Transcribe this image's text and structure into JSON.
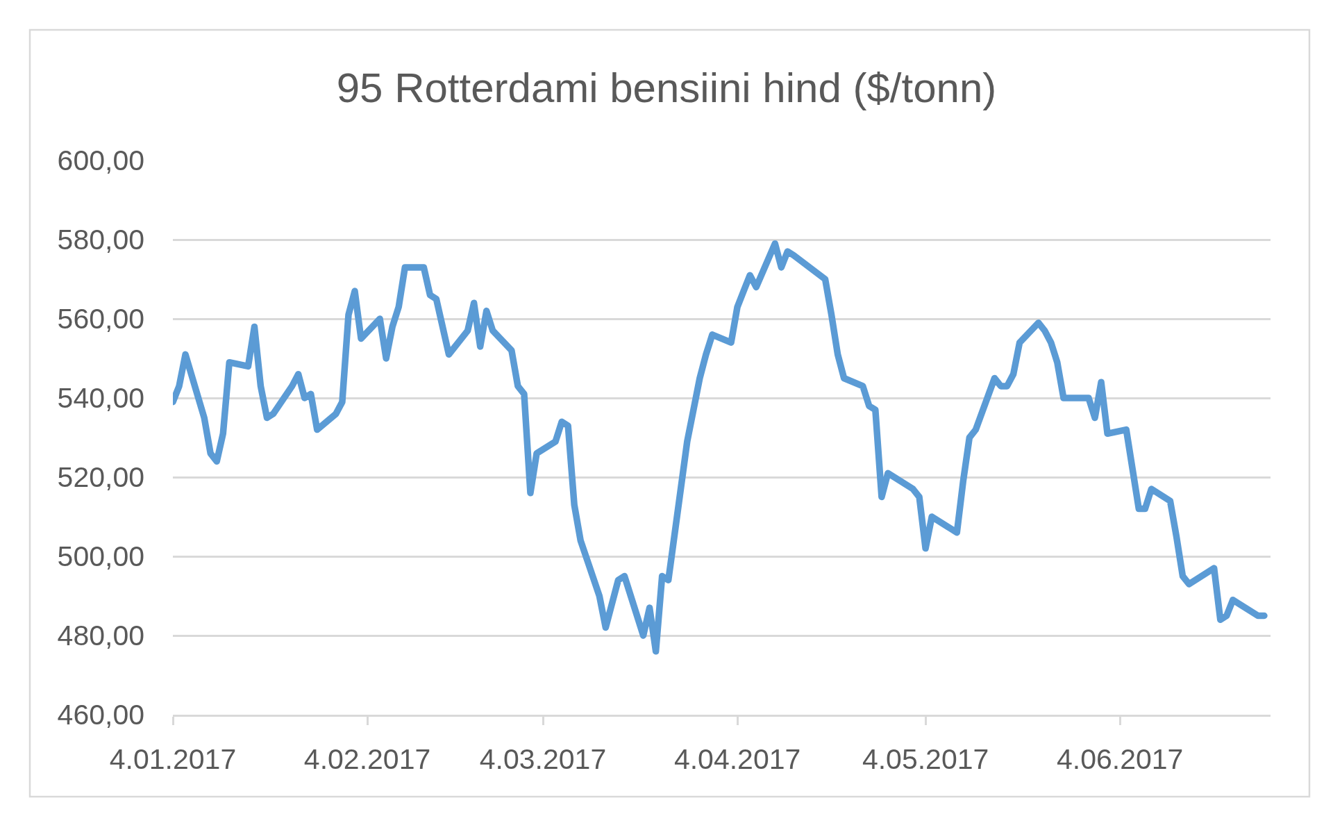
{
  "chart_data": {
    "type": "line",
    "title": "95 Rotterdami bensiini hind ($/tonn)",
    "x": [
      "2017-01-04",
      "2017-01-05",
      "2017-01-06",
      "2017-01-09",
      "2017-01-10",
      "2017-01-11",
      "2017-01-12",
      "2017-01-13",
      "2017-01-16",
      "2017-01-17",
      "2017-01-18",
      "2017-01-19",
      "2017-01-20",
      "2017-01-23",
      "2017-01-24",
      "2017-01-25",
      "2017-01-26",
      "2017-01-27",
      "2017-01-30",
      "2017-01-31",
      "2017-02-01",
      "2017-02-02",
      "2017-02-03",
      "2017-02-06",
      "2017-02-07",
      "2017-02-08",
      "2017-02-09",
      "2017-02-10",
      "2017-02-13",
      "2017-02-14",
      "2017-02-15",
      "2017-02-16",
      "2017-02-17",
      "2017-02-20",
      "2017-02-21",
      "2017-02-22",
      "2017-02-23",
      "2017-02-24",
      "2017-02-27",
      "2017-02-28",
      "2017-03-01",
      "2017-03-02",
      "2017-03-03",
      "2017-03-06",
      "2017-03-07",
      "2017-03-08",
      "2017-03-09",
      "2017-03-10",
      "2017-03-13",
      "2017-03-14",
      "2017-03-15",
      "2017-03-16",
      "2017-03-17",
      "2017-03-20",
      "2017-03-21",
      "2017-03-22",
      "2017-03-23",
      "2017-03-24",
      "2017-03-27",
      "2017-03-28",
      "2017-03-29",
      "2017-03-30",
      "2017-03-31",
      "2017-04-03",
      "2017-04-04",
      "2017-04-05",
      "2017-04-06",
      "2017-04-07",
      "2017-04-10",
      "2017-04-11",
      "2017-04-12",
      "2017-04-13",
      "2017-04-18",
      "2017-04-19",
      "2017-04-20",
      "2017-04-21",
      "2017-04-24",
      "2017-04-25",
      "2017-04-26",
      "2017-04-27",
      "2017-04-28",
      "2017-05-02",
      "2017-05-03",
      "2017-05-04",
      "2017-05-05",
      "2017-05-08",
      "2017-05-09",
      "2017-05-10",
      "2017-05-11",
      "2017-05-12",
      "2017-05-15",
      "2017-05-16",
      "2017-05-17",
      "2017-05-18",
      "2017-05-19",
      "2017-05-22",
      "2017-05-23",
      "2017-05-24",
      "2017-05-25",
      "2017-05-26",
      "2017-05-29",
      "2017-05-30",
      "2017-05-31",
      "2017-06-01",
      "2017-06-02",
      "2017-06-05",
      "2017-06-06",
      "2017-06-07",
      "2017-06-08",
      "2017-06-09",
      "2017-06-12",
      "2017-06-13",
      "2017-06-14",
      "2017-06-15",
      "2017-06-16",
      "2017-06-19",
      "2017-06-20",
      "2017-06-21",
      "2017-06-22",
      "2017-06-23",
      "2017-06-26",
      "2017-06-27"
    ],
    "series": [
      {
        "color": "#5b9bd5",
        "values": [
          539,
          543,
          551,
          535,
          526,
          524,
          531,
          549,
          548,
          558,
          543,
          535,
          536,
          543,
          546,
          540,
          541,
          532,
          536,
          539,
          561,
          567,
          555,
          560,
          550,
          558,
          563,
          573,
          573,
          566,
          565,
          558,
          551,
          557,
          564,
          553,
          562,
          557,
          552,
          543,
          541,
          516,
          526,
          529,
          534,
          533,
          513,
          504,
          490,
          482,
          488,
          494,
          495,
          480,
          487,
          476,
          495,
          494,
          529,
          537,
          545,
          551,
          556,
          554,
          563,
          567,
          571,
          568,
          579,
          573,
          577,
          576,
          570,
          561,
          551,
          545,
          543,
          538,
          537,
          515,
          521,
          517,
          515,
          502,
          510,
          507,
          506,
          519,
          530,
          532,
          545,
          543,
          543,
          546,
          554,
          559,
          557,
          554,
          549,
          540,
          540,
          540,
          535,
          544,
          531,
          532,
          522,
          512,
          512,
          517,
          514,
          505,
          495,
          493,
          494,
          497,
          484,
          485,
          489,
          488,
          485,
          485
        ]
      }
    ],
    "xlim": [
      "2017-01-04",
      "2017-06-28"
    ],
    "xticks": [
      {
        "value": "2017-01-04",
        "label": "4.01.2017"
      },
      {
        "value": "2017-02-04",
        "label": "4.02.2017"
      },
      {
        "value": "2017-03-04",
        "label": "4.03.2017"
      },
      {
        "value": "2017-04-04",
        "label": "4.04.2017"
      },
      {
        "value": "2017-05-04",
        "label": "4.05.2017"
      },
      {
        "value": "2017-06-04",
        "label": "4.06.2017"
      }
    ],
    "ylim": [
      460,
      600
    ],
    "yticks": [
      {
        "value": 460,
        "label": "460,00"
      },
      {
        "value": 480,
        "label": "480,00"
      },
      {
        "value": 500,
        "label": "500,00"
      },
      {
        "value": 520,
        "label": "520,00"
      },
      {
        "value": 540,
        "label": "540,00"
      },
      {
        "value": 560,
        "label": "560,00"
      },
      {
        "value": 580,
        "label": "580,00"
      },
      {
        "value": 600,
        "label": "600,00"
      }
    ],
    "grid": "y",
    "line_style": "solid"
  }
}
